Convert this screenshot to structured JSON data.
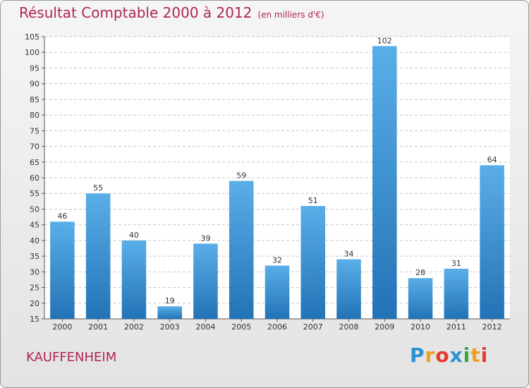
{
  "header": {
    "title": "Résultat Comptable 2000 à 2012",
    "subtitle": "(en milliers d'€)"
  },
  "footer": {
    "commune": "KAUFFENHEIM",
    "brand_letters": [
      "P",
      "r",
      "o",
      "x",
      "i",
      "t",
      "i"
    ],
    "brand_colors": [
      "#2e8fd6",
      "#f0a020",
      "#e63a2e",
      "#2e8fd6",
      "#38a843",
      "#f0a020",
      "#e63a2e"
    ]
  },
  "colors": {
    "bar_light": "#5aaee8",
    "bar_dark": "#2273b6",
    "grid": "#c8c8c8",
    "title": "#b0245a"
  },
  "chart_data": {
    "type": "bar",
    "title": "Résultat Comptable 2000 à 2012",
    "subtitle": "(en milliers d'€)",
    "categories": [
      "2000",
      "2001",
      "2002",
      "2003",
      "2004",
      "2005",
      "2006",
      "2007",
      "2008",
      "2009",
      "2010",
      "2011",
      "2012"
    ],
    "values": [
      46,
      55,
      40,
      19,
      39,
      59,
      32,
      51,
      34,
      102,
      28,
      31,
      64
    ],
    "ylim": [
      15,
      105
    ],
    "yticks": [
      15,
      20,
      25,
      30,
      35,
      40,
      45,
      50,
      55,
      60,
      65,
      70,
      75,
      80,
      85,
      90,
      95,
      100,
      105
    ],
    "grid": "horizontal dashed",
    "data_labels": true
  }
}
